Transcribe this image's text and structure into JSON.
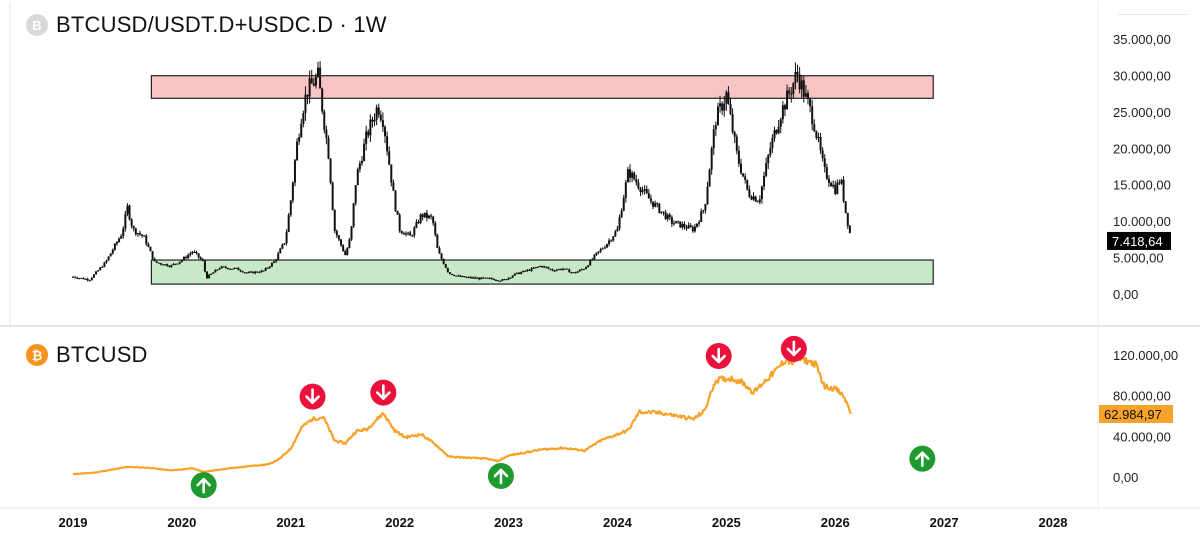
{
  "header": {
    "symbol_icon": "B",
    "title": "BTCUSD/USDT.D+USDC.D · 1W"
  },
  "lower_header": {
    "symbol_icon": "₿",
    "title": "BTCUSD"
  },
  "colors": {
    "candle": "#111111",
    "resistance_zone": "#f8c4c4",
    "support_zone": "#c8e9c8",
    "btc_line": "#f7a229",
    "sell_marker": "#e8123c",
    "buy_marker": "#1f9a2e",
    "price_label_top": "#000000",
    "price_label_bottom": "#f7a229"
  },
  "chart_data": [
    {
      "type": "line",
      "title": "BTCUSD/USDT.D+USDC.D · 1W",
      "ylim": [
        0,
        35000
      ],
      "y_ticks": [
        "35.000,00",
        "30.000,00",
        "25.000,00",
        "20.000,00",
        "15.000,00",
        "10.000,00",
        "5.000,00",
        "0,00"
      ],
      "y_tick_values": [
        35000,
        30000,
        25000,
        20000,
        15000,
        10000,
        5000,
        0
      ],
      "last_price_label": "7.418,64",
      "last_price": 7418.64,
      "zones": [
        {
          "name": "resistance",
          "x_start": 2019.72,
          "x_end": 2026.9,
          "y_low": 27000,
          "y_high": 30100
        },
        {
          "name": "support",
          "x_start": 2019.72,
          "x_end": 2026.9,
          "y_low": 1500,
          "y_high": 4800
        }
      ],
      "series": [
        {
          "x": [
            2019.0,
            2019.15,
            2019.3,
            2019.45,
            2019.5,
            2019.55,
            2019.65,
            2019.75,
            2019.9,
            2020.0,
            2020.1,
            2020.2,
            2020.22,
            2020.35,
            2020.5,
            2020.6,
            2020.75,
            2020.85,
            2020.95,
            2021.0,
            2021.05,
            2021.1,
            2021.15,
            2021.25,
            2021.35,
            2021.4,
            2021.5,
            2021.55,
            2021.6,
            2021.7,
            2021.8,
            2021.85,
            2021.95,
            2022.0,
            2022.1,
            2022.2,
            2022.3,
            2022.35,
            2022.45,
            2022.55,
            2022.7,
            2022.85,
            2022.95,
            2023.05,
            2023.2,
            2023.3,
            2023.4,
            2023.5,
            2023.6,
            2023.7,
            2023.8,
            2023.9,
            2024.0,
            2024.1,
            2024.2,
            2024.3,
            2024.4,
            2024.5,
            2024.6,
            2024.7,
            2024.8,
            2024.9,
            2025.0,
            2025.1,
            2025.2,
            2025.3,
            2025.4,
            2025.5,
            2025.6,
            2025.65,
            2025.72,
            2025.8,
            2025.9,
            2026.0,
            2026.05,
            2026.1,
            2026.15
          ],
          "values": [
            2500,
            2100,
            4500,
            8500,
            12000,
            9000,
            8000,
            4500,
            4000,
            4800,
            6000,
            4500,
            2300,
            3800,
            3600,
            3000,
            3300,
            4600,
            7500,
            13000,
            20000,
            25000,
            28000,
            30000,
            19000,
            9000,
            5500,
            8000,
            16000,
            22000,
            26000,
            24000,
            13000,
            9000,
            8000,
            11000,
            10500,
            6000,
            3000,
            2500,
            2300,
            2200,
            2000,
            2800,
            3500,
            4000,
            3400,
            3600,
            3000,
            3700,
            5500,
            7000,
            9000,
            17000,
            15000,
            13000,
            11500,
            10000,
            9500,
            9000,
            12000,
            24000,
            27500,
            19000,
            14000,
            13000,
            20000,
            25000,
            28500,
            30500,
            27500,
            24000,
            17000,
            14500,
            16000,
            11000,
            7400
          ]
        }
      ]
    },
    {
      "type": "line",
      "title": "BTCUSD",
      "ylim": [
        -20000,
        140000
      ],
      "y_ticks": [
        "120.000,00",
        "80.000,00",
        "40.000,00",
        "0,00"
      ],
      "y_tick_values": [
        120000,
        80000,
        40000,
        0
      ],
      "last_price_label": "62.984,97",
      "last_price": 62984.97,
      "x_ticks": [
        "2019",
        "2020",
        "2021",
        "2022",
        "2023",
        "2024",
        "2025",
        "2026",
        "2027",
        "2028"
      ],
      "x_tick_values": [
        2019,
        2020,
        2021,
        2022,
        2023,
        2024,
        2025,
        2026,
        2027,
        2028
      ],
      "series": [
        {
          "name": "BTCUSD",
          "x": [
            2019.0,
            2019.2,
            2019.4,
            2019.5,
            2019.7,
            2019.9,
            2020.1,
            2020.2,
            2020.4,
            2020.6,
            2020.8,
            2020.9,
            2021.0,
            2021.1,
            2021.2,
            2021.3,
            2021.4,
            2021.5,
            2021.6,
            2021.7,
            2021.85,
            2021.95,
            2022.05,
            2022.2,
            2022.35,
            2022.45,
            2022.6,
            2022.8,
            2022.9,
            2023.0,
            2023.1,
            2023.3,
            2023.5,
            2023.7,
            2023.85,
            2024.0,
            2024.1,
            2024.2,
            2024.4,
            2024.6,
            2024.7,
            2024.8,
            2024.9,
            2024.95,
            2025.05,
            2025.15,
            2025.25,
            2025.35,
            2025.45,
            2025.55,
            2025.6,
            2025.65,
            2025.75,
            2025.82,
            2025.9,
            2026.0,
            2026.08,
            2026.15
          ],
          "values": [
            3800,
            5300,
            9000,
            11000,
            10000,
            7500,
            9500,
            6000,
            9000,
            11500,
            13500,
            19000,
            29000,
            50000,
            58000,
            60000,
            37000,
            34000,
            46000,
            48000,
            64000,
            47000,
            40000,
            43000,
            31000,
            21000,
            20000,
            19000,
            16500,
            22000,
            24000,
            28000,
            29500,
            27000,
            37000,
            43000,
            47000,
            65000,
            64000,
            60000,
            58000,
            66000,
            96000,
            97000,
            98000,
            94000,
            84000,
            95000,
            105000,
            117000,
            113000,
            118000,
            115000,
            112000,
            90000,
            88000,
            80000,
            63000
          ]
        }
      ],
      "markers": [
        {
          "type": "sell",
          "x": 2021.2,
          "y": 80000
        },
        {
          "type": "sell",
          "x": 2021.85,
          "y": 84000
        },
        {
          "type": "sell",
          "x": 2024.93,
          "y": 120000
        },
        {
          "type": "sell",
          "x": 2025.62,
          "y": 127000
        },
        {
          "type": "buy",
          "x": 2020.2,
          "y": -7000
        },
        {
          "type": "buy",
          "x": 2022.93,
          "y": 2000
        },
        {
          "type": "buy",
          "x": 2026.8,
          "y": 19000
        }
      ]
    }
  ]
}
